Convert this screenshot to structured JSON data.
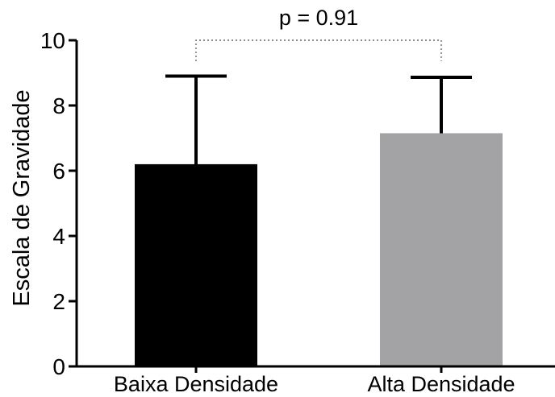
{
  "chart_data": {
    "type": "bar",
    "title": "",
    "xlabel": "",
    "ylabel": "Escala de Gravidade",
    "categories": [
      "Baixa Densidade",
      "Alta Densidade"
    ],
    "values": [
      6.2,
      7.15
    ],
    "error_upper": [
      8.9,
      8.87
    ],
    "ylim": [
      0,
      10
    ],
    "y_ticks": [
      0,
      2,
      4,
      6,
      8,
      10
    ],
    "y_tick_labels": [
      "0",
      "2",
      "4",
      "6",
      "8",
      "10"
    ],
    "colors": [
      "#000000",
      "#a3a3a6"
    ],
    "grid": false,
    "legend": "none",
    "annotations": [
      {
        "type": "significance",
        "text": "p = 0.91",
        "between": [
          "Baixa Densidade",
          "Alta Densidade"
        ],
        "level": 10
      }
    ]
  }
}
